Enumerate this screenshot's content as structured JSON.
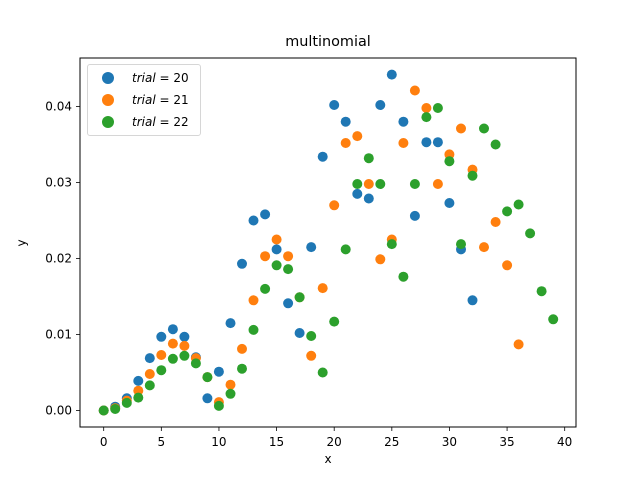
{
  "chart_data": {
    "type": "scatter",
    "title": "multinomial",
    "xlabel": "x",
    "ylabel": "y",
    "xlim": [
      -2,
      41
    ],
    "ylim": [
      -0.0022,
      0.0464
    ],
    "xticks": [
      0,
      5,
      10,
      15,
      20,
      25,
      30,
      35,
      40
    ],
    "xtick_labels": [
      "0",
      "5",
      "10",
      "15",
      "20",
      "25",
      "30",
      "35",
      "40"
    ],
    "yticks": [
      0.0,
      0.01,
      0.02,
      0.03,
      0.04
    ],
    "ytick_labels": [
      "0.00",
      "0.01",
      "0.02",
      "0.03",
      "0.04"
    ],
    "grid": false,
    "legend_position": "upper left",
    "series": [
      {
        "name": "trial = 20",
        "legend_var": "trial",
        "legend_value": "20",
        "color": "#1f77b4",
        "x": [
          0,
          1,
          2,
          3,
          4,
          5,
          6,
          7,
          8,
          9,
          10,
          11,
          12,
          13,
          14,
          15,
          16,
          17,
          18,
          19,
          20,
          21,
          22,
          23,
          24,
          25,
          26,
          27,
          28,
          29,
          30,
          31,
          32
        ],
        "y": [
          0.0,
          0.0005,
          0.0016,
          0.0039,
          0.0069,
          0.0097,
          0.0107,
          0.0097,
          0.007,
          0.0016,
          0.0051,
          0.0115,
          0.0193,
          0.025,
          0.0258,
          0.0212,
          0.0141,
          0.0102,
          0.0215,
          0.0334,
          0.0402,
          0.038,
          0.0285,
          0.0279,
          0.0402,
          0.0442,
          0.038,
          0.0256,
          0.0353,
          0.0353,
          0.0273,
          0.0212,
          0.0145
        ]
      },
      {
        "name": "trial = 21",
        "legend_var": "trial",
        "legend_value": "21",
        "color": "#ff7f0e",
        "x": [
          0,
          1,
          2,
          3,
          4,
          5,
          6,
          7,
          8,
          9,
          10,
          11,
          12,
          13,
          14,
          15,
          16,
          17,
          18,
          19,
          20,
          21,
          22,
          23,
          24,
          25,
          26,
          27,
          28,
          29,
          30,
          31,
          32,
          33,
          34,
          35,
          36
        ],
        "y": [
          0.0,
          0.0003,
          0.0013,
          0.0026,
          0.0048,
          0.0073,
          0.0088,
          0.0085,
          0.0069,
          0.0044,
          0.0011,
          0.0034,
          0.0081,
          0.0145,
          0.0203,
          0.0225,
          0.0203,
          0.0149,
          0.0072,
          0.0161,
          0.027,
          0.0352,
          0.0361,
          0.0298,
          0.0199,
          0.0225,
          0.0352,
          0.0421,
          0.0398,
          0.0298,
          0.0337,
          0.0371,
          0.0317,
          0.0215,
          0.0248,
          0.0191,
          0.0087
        ]
      },
      {
        "name": "trial = 22",
        "legend_var": "trial",
        "legend_value": "22",
        "color": "#2ca02c",
        "x": [
          0,
          1,
          2,
          3,
          4,
          5,
          6,
          7,
          8,
          9,
          10,
          11,
          12,
          13,
          14,
          15,
          16,
          17,
          18,
          19,
          20,
          21,
          22,
          23,
          24,
          25,
          26,
          27,
          28,
          29,
          30,
          31,
          32,
          33,
          34,
          35,
          36,
          37,
          38,
          39
        ],
        "y": [
          0.0,
          0.0002,
          0.001,
          0.0017,
          0.0033,
          0.0053,
          0.0068,
          0.0072,
          0.0062,
          0.0044,
          0.0006,
          0.0022,
          0.0055,
          0.0106,
          0.016,
          0.0191,
          0.0186,
          0.0149,
          0.0098,
          0.005,
          0.0117,
          0.0212,
          0.0298,
          0.0332,
          0.0298,
          0.0219,
          0.0176,
          0.0298,
          0.0386,
          0.0398,
          0.0328,
          0.0219,
          0.0309,
          0.0371,
          0.035,
          0.0262,
          0.0271,
          0.0233,
          0.0157,
          0.012
        ]
      }
    ]
  },
  "legend": {
    "items": [
      {
        "var": "trial",
        "eq": " = 20",
        "color": "#1f77b4"
      },
      {
        "var": "trial",
        "eq": " = 21",
        "color": "#ff7f0e"
      },
      {
        "var": "trial",
        "eq": " = 22",
        "color": "#2ca02c"
      }
    ]
  }
}
